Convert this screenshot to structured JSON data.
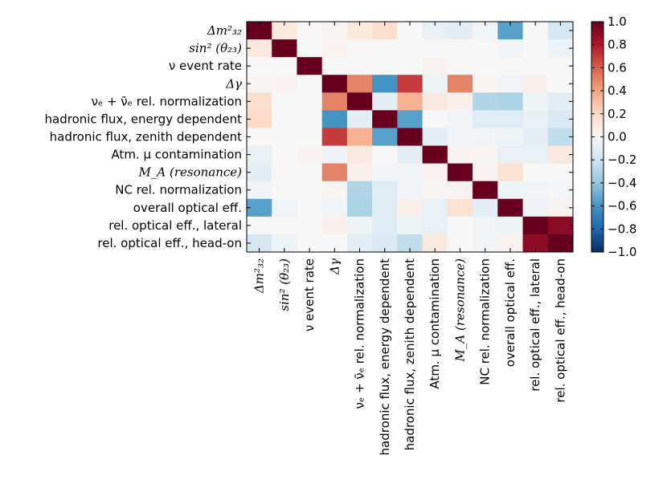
{
  "chart_data": {
    "type": "heatmap",
    "title": "",
    "xlabel": "",
    "ylabel": "",
    "labels": [
      "Δm²₃₂",
      "sin² (θ₂₃)",
      "ν event rate",
      "Δγ",
      "νₑ + ν̄ₑ rel. normalization",
      "hadronic flux, energy dependent",
      "hadronic flux, zenith dependent",
      "Atm. μ contamination",
      "M_A (resonance)",
      "NC rel. normalization",
      "overall optical eff.",
      "rel. optical eff., lateral",
      "rel. optical eff., head-on"
    ],
    "matrix": [
      [
        1.0,
        0.1,
        0.0,
        0.02,
        0.1,
        0.18,
        0.0,
        -0.08,
        -0.1,
        -0.03,
        -0.55,
        0.0,
        -0.18
      ],
      [
        0.1,
        1.0,
        0.0,
        0.03,
        0.0,
        0.0,
        0.0,
        0.0,
        0.0,
        0.0,
        -0.03,
        0.0,
        -0.05
      ],
      [
        0.0,
        0.0,
        1.0,
        0.0,
        0.0,
        0.0,
        0.0,
        0.03,
        0.0,
        0.0,
        0.0,
        0.0,
        0.0
      ],
      [
        0.02,
        0.03,
        0.0,
        1.0,
        0.5,
        -0.6,
        0.7,
        -0.05,
        0.5,
        0.02,
        -0.03,
        0.05,
        0.0
      ],
      [
        0.18,
        0.0,
        0.0,
        0.5,
        1.0,
        -0.1,
        0.35,
        0.1,
        0.05,
        -0.3,
        -0.32,
        -0.05,
        -0.1
      ],
      [
        0.2,
        0.0,
        0.0,
        -0.6,
        -0.1,
        1.0,
        -0.55,
        0.0,
        -0.03,
        -0.12,
        -0.12,
        -0.08,
        -0.15
      ],
      [
        0.0,
        0.0,
        0.0,
        0.7,
        0.35,
        -0.55,
        1.0,
        -0.1,
        -0.03,
        -0.03,
        -0.05,
        -0.1,
        -0.25
      ],
      [
        -0.08,
        0.0,
        0.03,
        -0.05,
        0.1,
        0.0,
        -0.1,
        1.0,
        0.03,
        0.02,
        -0.08,
        -0.08,
        0.1
      ],
      [
        -0.1,
        0.0,
        0.0,
        0.5,
        0.05,
        -0.03,
        -0.03,
        0.03,
        1.0,
        0.03,
        0.15,
        0.0,
        0.0
      ],
      [
        -0.03,
        0.0,
        0.0,
        0.02,
        -0.3,
        -0.12,
        -0.03,
        0.02,
        0.03,
        1.0,
        -0.05,
        -0.03,
        -0.02
      ],
      [
        -0.55,
        -0.03,
        0.0,
        -0.03,
        -0.32,
        -0.12,
        0.05,
        -0.08,
        0.15,
        -0.1,
        1.0,
        -0.05,
        0.03
      ],
      [
        0.0,
        0.0,
        0.0,
        0.05,
        -0.05,
        -0.12,
        -0.05,
        -0.08,
        0.0,
        -0.03,
        -0.05,
        1.0,
        0.9
      ],
      [
        -0.18,
        -0.05,
        0.0,
        0.0,
        -0.1,
        -0.15,
        -0.25,
        0.1,
        0.0,
        -0.03,
        0.03,
        0.9,
        1.0
      ]
    ],
    "colorbar": {
      "min": -1.0,
      "max": 1.0,
      "ticks": [
        "1.0",
        "0.8",
        "0.6",
        "0.4",
        "0.2",
        "0.0",
        "−0.2",
        "−0.4",
        "−0.6",
        "−0.8",
        "−1.0"
      ],
      "colormap": "RdBu_r"
    }
  }
}
